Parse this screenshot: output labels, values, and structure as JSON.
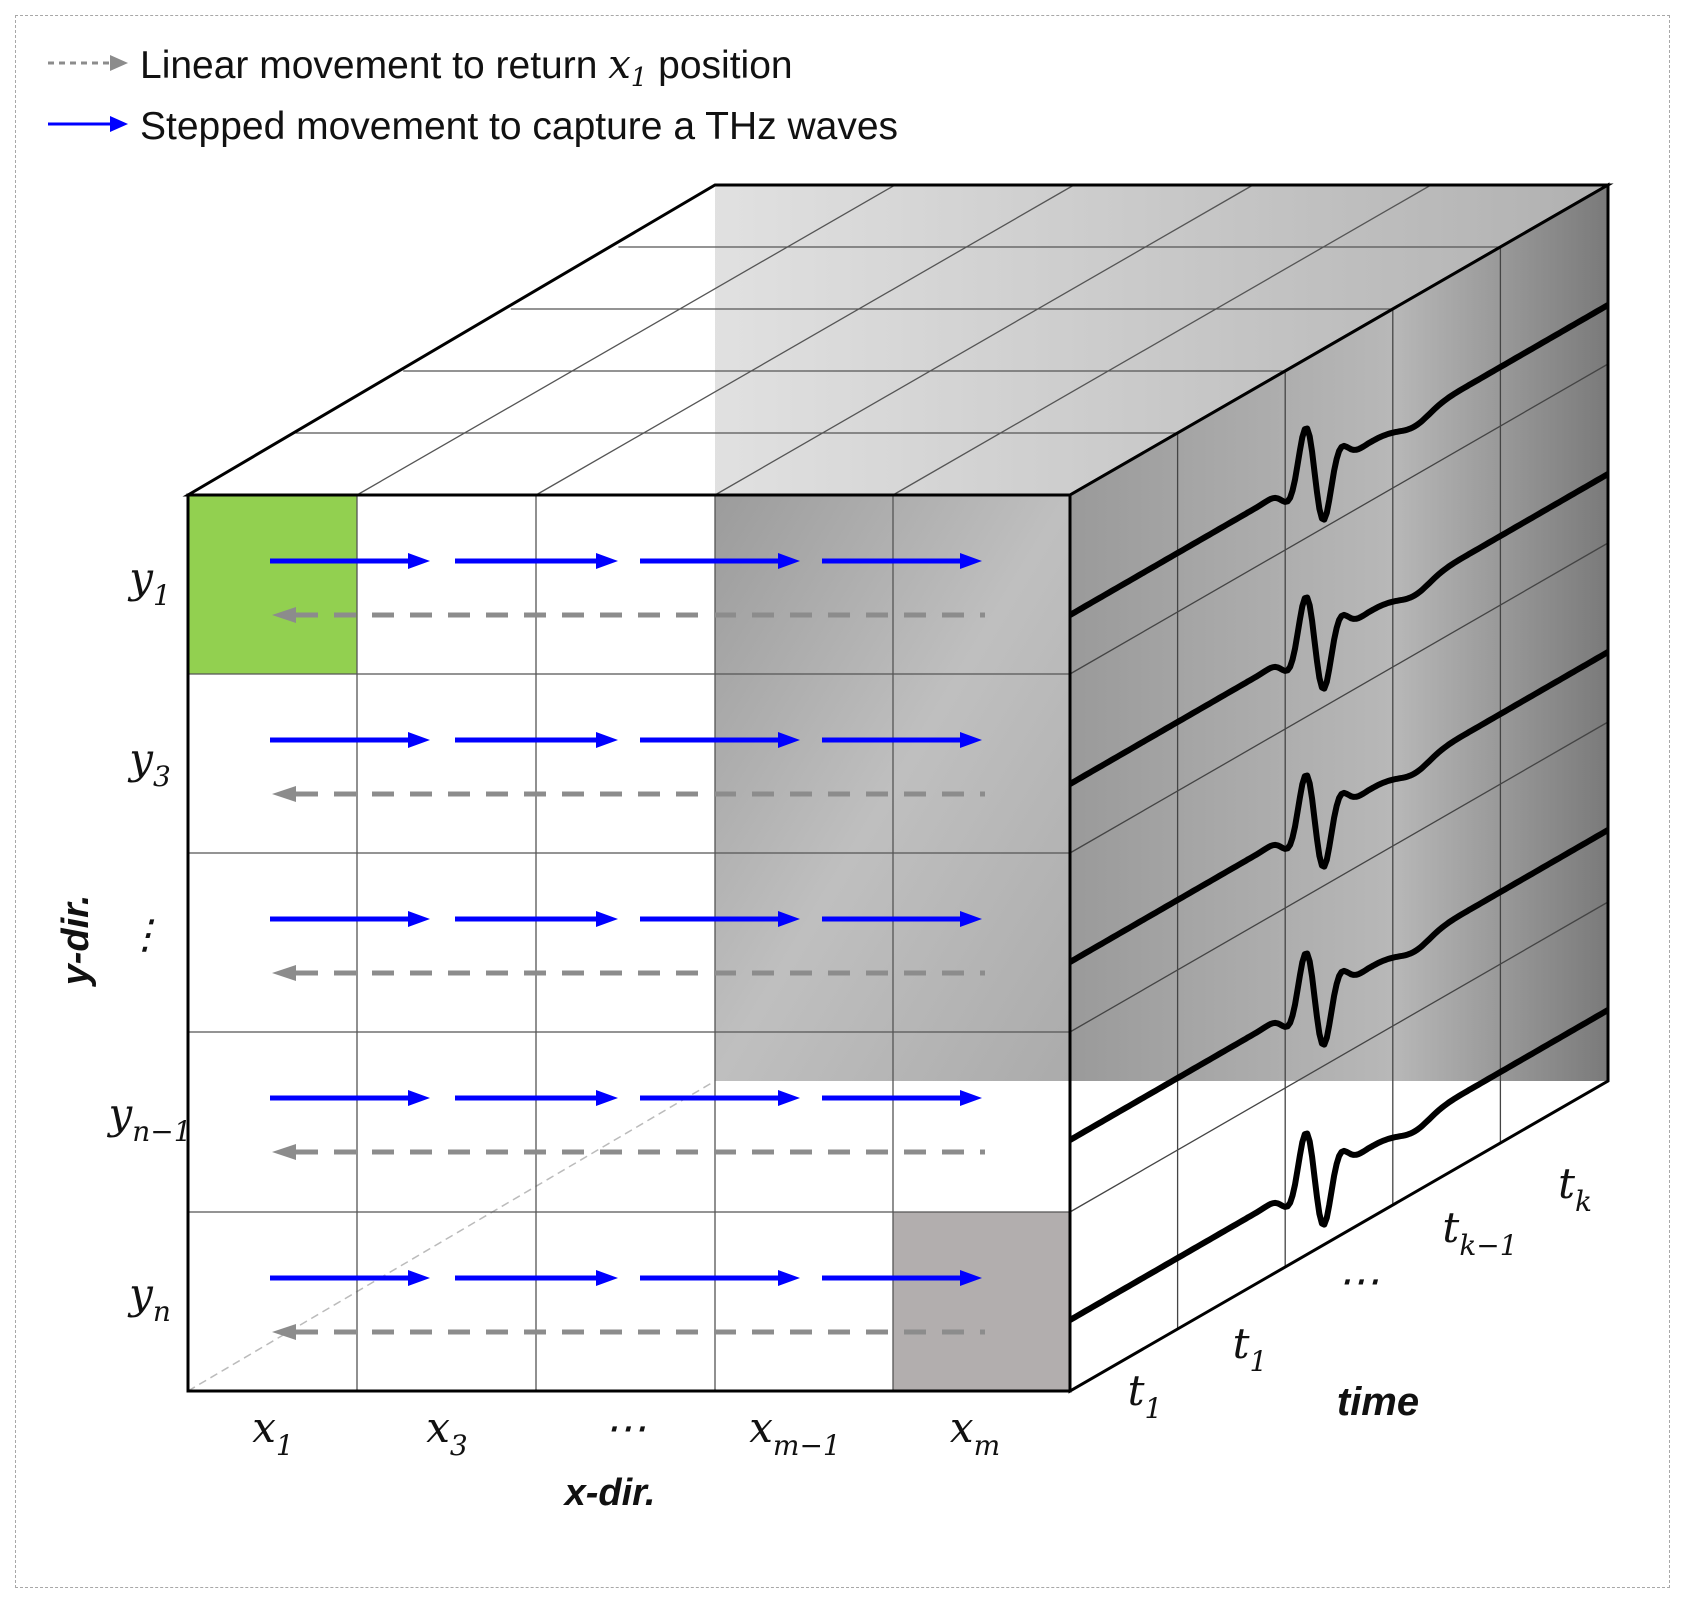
{
  "legend": {
    "linear_label_before": "Linear movement to return ",
    "linear_label_var": "x",
    "linear_label_sub": "1",
    "linear_label_after": " position",
    "stepped_label": "Stepped movement to capture a THz waves",
    "colors": {
      "linear": "#8c8c8c",
      "stepped": "#0000ff"
    }
  },
  "axes": {
    "x_title": "x-dir.",
    "y_title": "y-dir.",
    "t_title": "time"
  },
  "x_labels": [
    {
      "var": "x",
      "sub": "1"
    },
    {
      "var": "x",
      "sub": "3"
    },
    {
      "var": "⋯",
      "sub": ""
    },
    {
      "var": "x",
      "sub": "m−1"
    },
    {
      "var": "x",
      "sub": "m"
    }
  ],
  "y_labels": [
    {
      "var": "y",
      "sub": "1"
    },
    {
      "var": "y",
      "sub": "3"
    },
    {
      "var": "⋮",
      "sub": ""
    },
    {
      "var": "y",
      "sub": "n−1"
    },
    {
      "var": "y",
      "sub": "n"
    }
  ],
  "t_labels": [
    {
      "var": "t",
      "sub": "1"
    },
    {
      "var": "t",
      "sub": "1"
    },
    {
      "var": "⋯",
      "sub": ""
    },
    {
      "var": "t",
      "sub": "k−1"
    },
    {
      "var": "t",
      "sub": "k"
    }
  ],
  "colors": {
    "start_cell": "#92d050",
    "end_cell": "#b2aeae",
    "waveform": "#000000",
    "grid": "#555555"
  }
}
